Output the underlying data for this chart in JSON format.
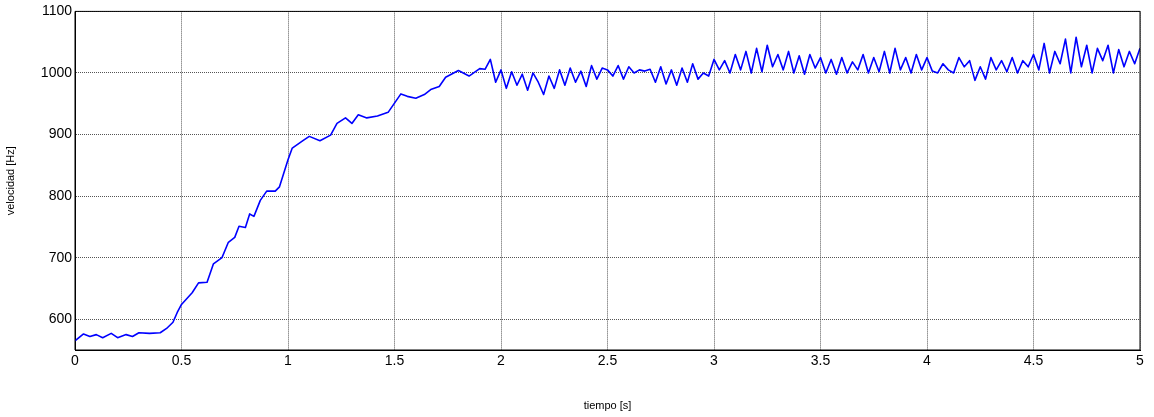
{
  "chart_data": {
    "type": "line",
    "xlabel": "tiempo [s]",
    "ylabel": "velocidad [Hz]",
    "xlim": [
      0,
      5
    ],
    "xticks": [
      0,
      0.5,
      1,
      1.5,
      2,
      2.5,
      3,
      3.5,
      4,
      4.5,
      5
    ],
    "ylim": [
      550,
      1100
    ],
    "yticks": [
      600,
      700,
      800,
      900,
      1000,
      1100
    ],
    "grid": true,
    "legend": false,
    "marker": "none",
    "line_style": "solid",
    "series": [
      {
        "color": "#0000ff",
        "x": [
          0,
          0.04,
          0.07,
          0.1,
          0.13,
          0.17,
          0.2,
          0.24,
          0.27,
          0.3,
          0.35,
          0.4,
          0.43,
          0.46,
          0.48,
          0.5,
          0.55,
          0.58,
          0.62,
          0.65,
          0.69,
          0.72,
          0.75,
          0.77,
          0.8,
          0.82,
          0.84,
          0.87,
          0.9,
          0.94,
          0.96,
          0.98,
          1.0,
          1.02,
          1.07,
          1.1,
          1.15,
          1.2,
          1.23,
          1.27,
          1.3,
          1.33,
          1.37,
          1.42,
          1.47,
          1.5,
          1.53,
          1.56,
          1.6,
          1.64,
          1.67,
          1.71,
          1.74,
          1.8,
          1.85,
          1.9,
          1.925,
          1.95,
          1.975,
          2.0,
          2.025,
          2.05,
          2.075,
          2.1,
          2.125,
          2.15,
          2.175,
          2.2,
          2.225,
          2.25,
          2.275,
          2.3,
          2.325,
          2.35,
          2.375,
          2.4,
          2.425,
          2.45,
          2.475,
          2.5,
          2.525,
          2.55,
          2.575,
          2.6,
          2.625,
          2.65,
          2.675,
          2.7,
          2.725,
          2.75,
          2.775,
          2.8,
          2.825,
          2.85,
          2.875,
          2.9,
          2.925,
          2.95,
          2.975,
          3.0,
          3.025,
          3.05,
          3.075,
          3.1,
          3.125,
          3.15,
          3.175,
          3.2,
          3.225,
          3.25,
          3.275,
          3.3,
          3.325,
          3.35,
          3.375,
          3.4,
          3.425,
          3.45,
          3.475,
          3.5,
          3.525,
          3.55,
          3.575,
          3.6,
          3.625,
          3.65,
          3.675,
          3.7,
          3.725,
          3.75,
          3.775,
          3.8,
          3.825,
          3.85,
          3.875,
          3.9,
          3.925,
          3.95,
          3.975,
          4.0,
          4.025,
          4.05,
          4.075,
          4.1,
          4.125,
          4.15,
          4.175,
          4.2,
          4.225,
          4.25,
          4.275,
          4.3,
          4.325,
          4.35,
          4.375,
          4.4,
          4.425,
          4.45,
          4.475,
          4.5,
          4.525,
          4.55,
          4.575,
          4.6,
          4.625,
          4.65,
          4.675,
          4.7,
          4.725,
          4.75,
          4.775,
          4.8,
          4.825,
          4.85,
          4.875,
          4.9,
          4.925,
          4.95,
          4.975,
          5.0
        ],
        "values": [
          565,
          576,
          572,
          575,
          570,
          577,
          570,
          575,
          572,
          578,
          577,
          578,
          585,
          595,
          611,
          624,
          643,
          659,
          660,
          690,
          700,
          725,
          733,
          751,
          749,
          771,
          767,
          793,
          808,
          808,
          815,
          837,
          859,
          878,
          890,
          897,
          890,
          899,
          918,
          927,
          918,
          932,
          927,
          930,
          936,
          951,
          966,
          962,
          959,
          965,
          973,
          978,
          993,
          1004,
          995,
          1007,
          1006,
          1022,
          985,
          1005,
          975,
          1002,
          980,
          998,
          972,
          1000,
          985,
          965,
          995,
          975,
          1005,
          980,
          1008,
          985,
          1003,
          978,
          1012,
          990,
          1008,
          1005,
          995,
          1012,
          990,
          1010,
          1000,
          1005,
          1003,
          1006,
          985,
          1010,
          982,
          1005,
          980,
          1008,
          985,
          1015,
          990,
          1000,
          995,
          1022,
          1005,
          1020,
          1000,
          1030,
          1005,
          1035,
          1000,
          1040,
          1002,
          1045,
          1010,
          1030,
          1005,
          1035,
          1000,
          1028,
          998,
          1030,
          1008,
          1025,
          1000,
          1022,
          998,
          1025,
          1000,
          1018,
          1005,
          1030,
          1000,
          1025,
          1002,
          1035,
          1000,
          1040,
          1005,
          1025,
          1000,
          1030,
          1005,
          1025,
          1003,
          1000,
          1015,
          1005,
          1000,
          1025,
          1010,
          1020,
          988,
          1010,
          990,
          1025,
          1005,
          1020,
          1002,
          1025,
          1000,
          1020,
          1010,
          1030,
          1005,
          1048,
          1000,
          1035,
          1015,
          1055,
          1000,
          1058,
          1010,
          1045,
          1000,
          1040,
          1020,
          1045,
          1000,
          1038,
          1010,
          1035,
          1015,
          1040
        ]
      }
    ]
  }
}
